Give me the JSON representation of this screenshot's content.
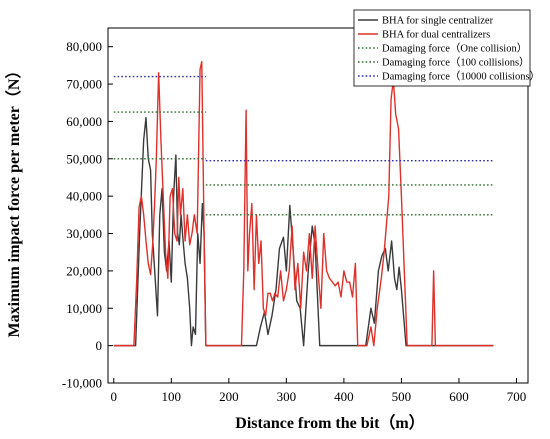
{
  "chart_data": {
    "type": "line",
    "xlabel": "Distance from the bit（m）",
    "ylabel": "Maximum impact force per meter（N）",
    "xlim": [
      -10,
      720
    ],
    "ylim": [
      -10000,
      85000
    ],
    "x_ticks": [
      0,
      100,
      200,
      300,
      400,
      500,
      600,
      700
    ],
    "y_ticks": [
      -10000,
      0,
      10000,
      20000,
      30000,
      40000,
      50000,
      60000,
      70000,
      80000
    ],
    "y_tick_labels": [
      "-10,000",
      "0",
      "10,000",
      "20,000",
      "30,000",
      "40,000",
      "50,000",
      "60,000",
      "70,000",
      "80,000"
    ],
    "legend_position": "top-right",
    "series": [
      {
        "name": "BHA for single centralizer",
        "color": "#3a3a3a",
        "style": "solid",
        "points": [
          [
            0,
            0
          ],
          [
            38,
            0
          ],
          [
            45,
            30000
          ],
          [
            52,
            55000
          ],
          [
            56,
            61000
          ],
          [
            60,
            50000
          ],
          [
            64,
            47000
          ],
          [
            67,
            30000
          ],
          [
            72,
            18000
          ],
          [
            76,
            8000
          ],
          [
            80,
            35000
          ],
          [
            84,
            42000
          ],
          [
            88,
            25000
          ],
          [
            92,
            20000
          ],
          [
            96,
            28000
          ],
          [
            100,
            17000
          ],
          [
            104,
            40000
          ],
          [
            108,
            51000
          ],
          [
            111,
            30000
          ],
          [
            114,
            27000
          ],
          [
            117,
            35000
          ],
          [
            120,
            29000
          ],
          [
            124,
            22000
          ],
          [
            128,
            18000
          ],
          [
            132,
            10000
          ],
          [
            135,
            0
          ],
          [
            138,
            5000
          ],
          [
            142,
            3000
          ],
          [
            146,
            30000
          ],
          [
            150,
            22000
          ],
          [
            154,
            38000
          ],
          [
            157,
            30000
          ],
          [
            160,
            0
          ],
          [
            240,
            0
          ],
          [
            248,
            0
          ],
          [
            255,
            5000
          ],
          [
            262,
            9000
          ],
          [
            268,
            3000
          ],
          [
            275,
            8000
          ],
          [
            282,
            15000
          ],
          [
            288,
            26000
          ],
          [
            295,
            29000
          ],
          [
            300,
            20000
          ],
          [
            306,
            37500
          ],
          [
            312,
            25000
          ],
          [
            318,
            12000
          ],
          [
            324,
            10000
          ],
          [
            330,
            0
          ],
          [
            338,
            20000
          ],
          [
            345,
            32000
          ],
          [
            350,
            27000
          ],
          [
            358,
            0
          ],
          [
            430,
            0
          ],
          [
            438,
            0
          ],
          [
            447,
            10000
          ],
          [
            453,
            6000
          ],
          [
            460,
            20000
          ],
          [
            466,
            24000
          ],
          [
            472,
            26000
          ],
          [
            477,
            20000
          ],
          [
            483,
            28000
          ],
          [
            488,
            18000
          ],
          [
            492,
            15000
          ],
          [
            496,
            21000
          ],
          [
            500,
            15000
          ],
          [
            508,
            0
          ],
          [
            660,
            0
          ]
        ]
      },
      {
        "name": "BHA for dual centralizers",
        "color": "#e0302a",
        "style": "solid",
        "points": [
          [
            0,
            0
          ],
          [
            35,
            0
          ],
          [
            40,
            18000
          ],
          [
            44,
            37000
          ],
          [
            48,
            40000
          ],
          [
            52,
            35000
          ],
          [
            56,
            28000
          ],
          [
            60,
            22000
          ],
          [
            64,
            19000
          ],
          [
            68,
            28000
          ],
          [
            71,
            38000
          ],
          [
            74,
            50000
          ],
          [
            78,
            73000
          ],
          [
            82,
            55000
          ],
          [
            86,
            40000
          ],
          [
            90,
            25000
          ],
          [
            94,
            18000
          ],
          [
            98,
            40000
          ],
          [
            102,
            42000
          ],
          [
            106,
            30000
          ],
          [
            110,
            28000
          ],
          [
            113,
            45000
          ],
          [
            116,
            35000
          ],
          [
            120,
            42000
          ],
          [
            124,
            28000
          ],
          [
            128,
            35000
          ],
          [
            132,
            27000
          ],
          [
            136,
            30000
          ],
          [
            140,
            35000
          ],
          [
            145,
            30000
          ],
          [
            150,
            74000
          ],
          [
            153,
            76000
          ],
          [
            157,
            30000
          ],
          [
            160,
            0
          ],
          [
            222,
            0
          ],
          [
            226,
            20000
          ],
          [
            230,
            63000
          ],
          [
            233,
            20000
          ],
          [
            236,
            30000
          ],
          [
            240,
            38000
          ],
          [
            244,
            15000
          ],
          [
            248,
            35000
          ],
          [
            252,
            22000
          ],
          [
            256,
            28000
          ],
          [
            260,
            10000
          ],
          [
            264,
            8000
          ],
          [
            268,
            14000
          ],
          [
            272,
            14000
          ],
          [
            276,
            12000
          ],
          [
            280,
            14000
          ],
          [
            285,
            13000
          ],
          [
            290,
            20000
          ],
          [
            295,
            12000
          ],
          [
            300,
            15000
          ],
          [
            305,
            20000
          ],
          [
            310,
            32000
          ],
          [
            315,
            15000
          ],
          [
            320,
            22000
          ],
          [
            325,
            10000
          ],
          [
            330,
            25000
          ],
          [
            335,
            20000
          ],
          [
            340,
            30000
          ],
          [
            345,
            18000
          ],
          [
            350,
            32000
          ],
          [
            356,
            18000
          ],
          [
            360,
            10000
          ],
          [
            365,
            30000
          ],
          [
            370,
            20000
          ],
          [
            375,
            18000
          ],
          [
            380,
            17000
          ],
          [
            385,
            16000
          ],
          [
            390,
            17000
          ],
          [
            395,
            13000
          ],
          [
            400,
            20000
          ],
          [
            405,
            17000
          ],
          [
            410,
            17000
          ],
          [
            415,
            13000
          ],
          [
            420,
            22000
          ],
          [
            424,
            0
          ],
          [
            440,
            0
          ],
          [
            447,
            5000
          ],
          [
            452,
            0
          ],
          [
            458,
            10000
          ],
          [
            465,
            18000
          ],
          [
            470,
            25000
          ],
          [
            478,
            40000
          ],
          [
            482,
            66000
          ],
          [
            486,
            71000
          ],
          [
            490,
            62000
          ],
          [
            495,
            58000
          ],
          [
            500,
            40000
          ],
          [
            505,
            20000
          ],
          [
            510,
            0
          ],
          [
            553,
            0
          ],
          [
            556,
            20000
          ],
          [
            559,
            0
          ],
          [
            660,
            0
          ]
        ]
      },
      {
        "name": "Damaging force（One collision）",
        "color": "#2f6b2f",
        "style": "dotted",
        "segments": [
          [
            [
              0,
              62500
            ],
            [
              160,
              62500
            ]
          ],
          [
            [
              160,
              43000
            ],
            [
              660,
              43000
            ]
          ]
        ]
      },
      {
        "name": "Damaging force（100 collisions）",
        "color": "#2f6b2f",
        "style": "dotted",
        "segments": [
          [
            [
              0,
              50000
            ],
            [
              160,
              50000
            ]
          ],
          [
            [
              160,
              35000
            ],
            [
              660,
              35000
            ]
          ]
        ]
      },
      {
        "name": "Damaging force（10000 collisions）",
        "color": "#2a2ab5",
        "style": "dotted",
        "segments": [
          [
            [
              0,
              72000
            ],
            [
              160,
              72000
            ]
          ],
          [
            [
              160,
              49500
            ],
            [
              660,
              49500
            ]
          ]
        ]
      }
    ]
  }
}
